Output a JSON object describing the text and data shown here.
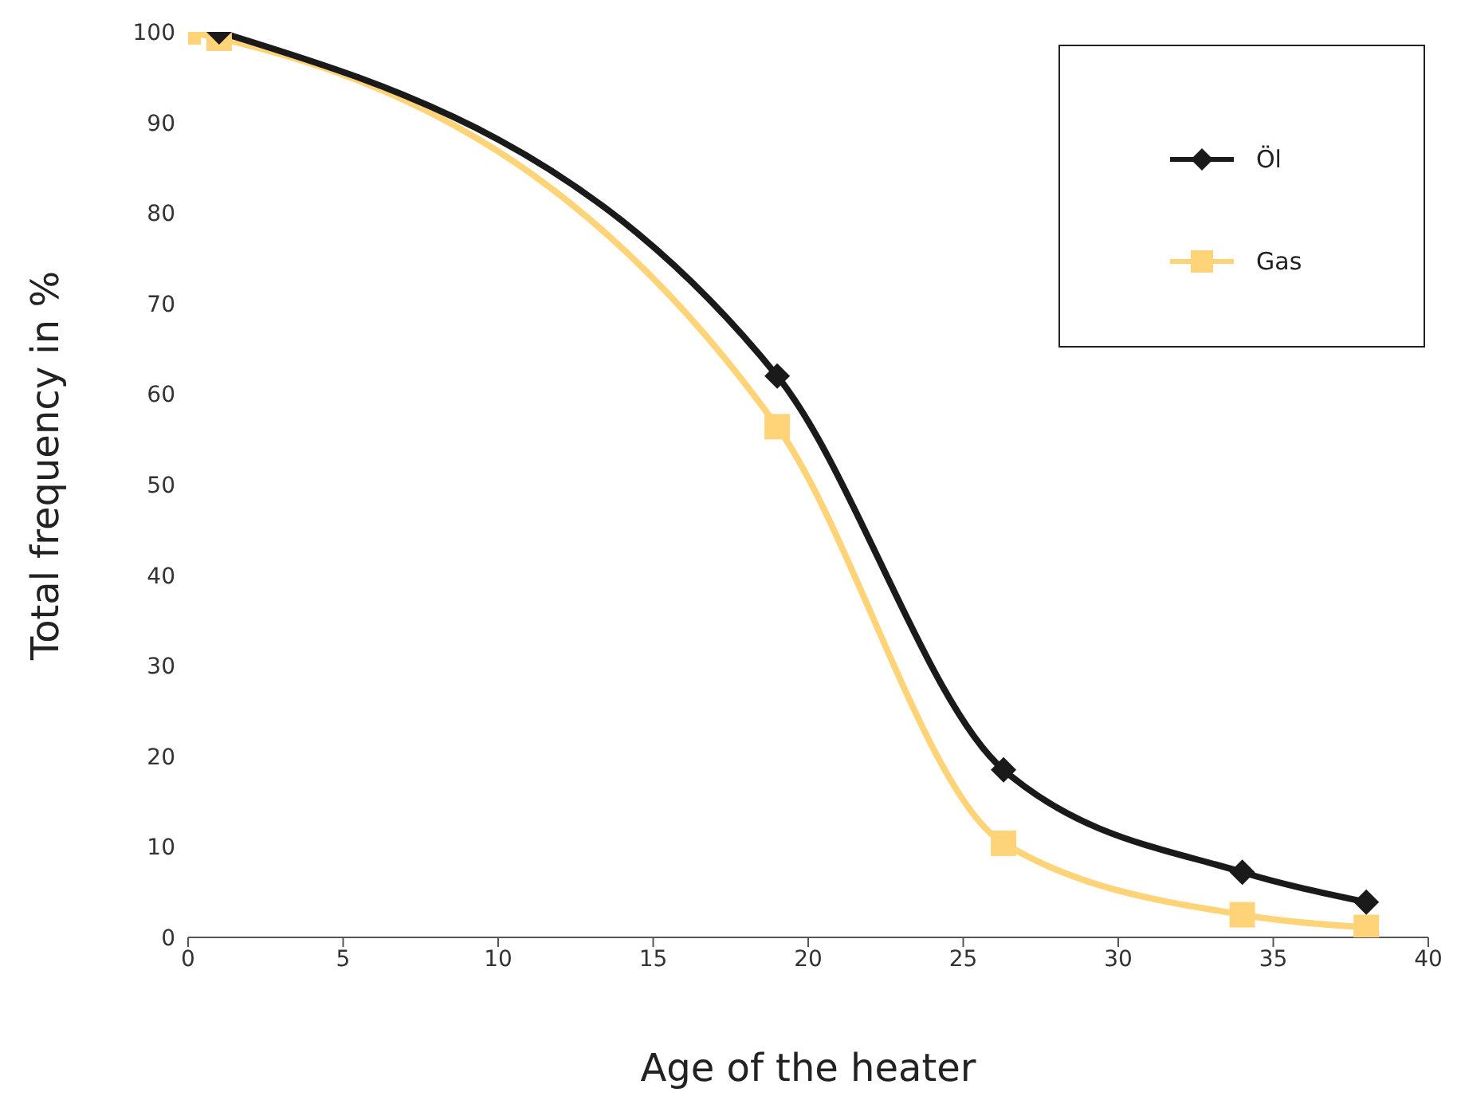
{
  "chart_data": {
    "type": "line",
    "xlabel": "Age of the heater",
    "ylabel": "Total frequency in %",
    "xlim": [
      0,
      40
    ],
    "xticks": [
      0,
      5,
      10,
      15,
      20,
      25,
      30,
      35,
      40
    ],
    "ylim": [
      0,
      100
    ],
    "yticks": [
      0,
      10,
      20,
      30,
      40,
      50,
      60,
      70,
      80,
      90,
      100
    ],
    "grid": false,
    "legend": "top right",
    "series": [
      {
        "name": "Öl",
        "color": "#1a1a1a",
        "marker": "diamond",
        "x": [
          1,
          19,
          26.3,
          34,
          38
        ],
        "values": [
          100,
          62,
          18.5,
          7.2,
          3.9
        ]
      },
      {
        "name": "Gas",
        "color": "#ffd479",
        "marker": "square",
        "x": [
          0,
          1,
          19,
          26.3,
          34,
          38
        ],
        "values": [
          100,
          99.3,
          56.4,
          10.4,
          2.5,
          1.1
        ]
      }
    ]
  }
}
